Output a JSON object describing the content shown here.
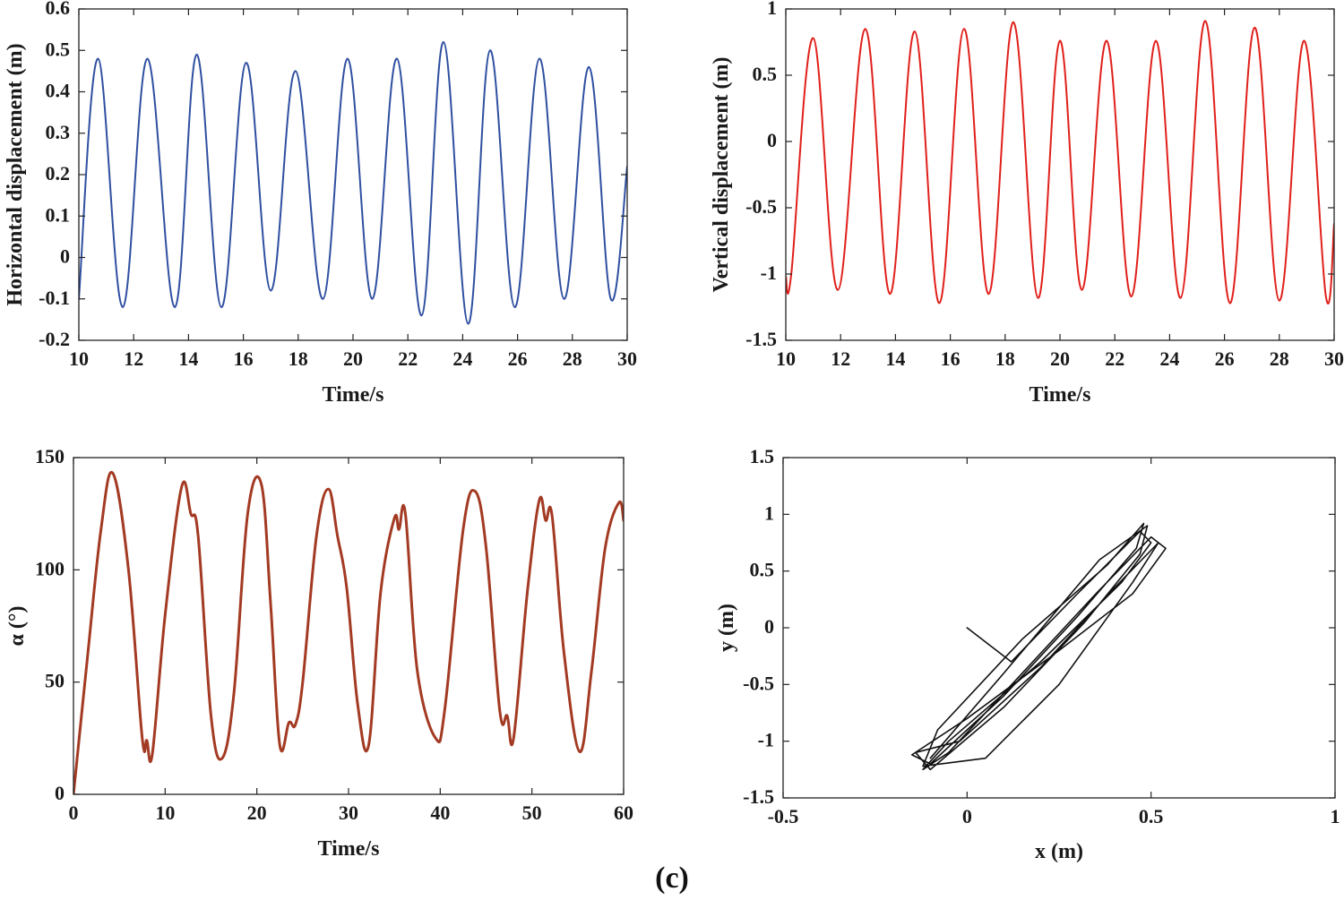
{
  "caption": "(c)",
  "chart_data": [
    {
      "type": "line",
      "color": "#2f4fa0",
      "xlabel": "Time/s",
      "ylabel": "Horizontal displacement (m)",
      "xlim": [
        10,
        30
      ],
      "ylim": [
        -0.2,
        0.6
      ],
      "xticks": [
        10,
        12,
        14,
        16,
        18,
        20,
        22,
        24,
        26,
        28,
        30
      ],
      "yticks": [
        -0.2,
        -0.1,
        0,
        0.1,
        0.2,
        0.3,
        0.4,
        0.5,
        0.6
      ],
      "xtick_labels": [
        "10",
        "12",
        "14",
        "16",
        "18",
        "20",
        "22",
        "24",
        "26",
        "28",
        "30"
      ],
      "ytick_labels": [
        "-0.2",
        "-0.1",
        "0",
        "0.1",
        "0.2",
        "0.3",
        "0.4",
        "0.5",
        "0.6"
      ],
      "series": [
        {
          "name": "horizontal displacement",
          "x": [
            10.0,
            10.7,
            11.6,
            12.5,
            13.5,
            14.3,
            15.2,
            16.1,
            17.0,
            17.9,
            18.9,
            19.8,
            20.7,
            21.6,
            22.5,
            23.3,
            24.2,
            25.0,
            25.9,
            26.8,
            27.7,
            28.6,
            29.4,
            30.0
          ],
          "y": [
            -0.1,
            0.48,
            -0.12,
            0.48,
            -0.12,
            0.49,
            -0.12,
            0.47,
            -0.08,
            0.45,
            -0.1,
            0.48,
            -0.1,
            0.48,
            -0.14,
            0.52,
            -0.16,
            0.5,
            -0.12,
            0.48,
            -0.1,
            0.46,
            -0.1,
            0.22
          ]
        }
      ]
    },
    {
      "type": "line",
      "color": "#e0201b",
      "xlabel": "Time/s",
      "ylabel": "Vertical displacement (m)",
      "xlim": [
        10,
        30
      ],
      "ylim": [
        -1.5,
        1
      ],
      "xticks": [
        10,
        12,
        14,
        16,
        18,
        20,
        22,
        24,
        26,
        28,
        30
      ],
      "yticks": [
        -1.5,
        -1,
        -0.5,
        0,
        0.5,
        1
      ],
      "xtick_labels": [
        "10",
        "12",
        "14",
        "16",
        "18",
        "20",
        "22",
        "24",
        "26",
        "28",
        "30"
      ],
      "ytick_labels": [
        "-1.5",
        "-1",
        "-0.5",
        "0",
        "0.5",
        "1"
      ],
      "series": [
        {
          "name": "vertical displacement",
          "x": [
            10.0,
            10.2,
            11.0,
            11.9,
            12.9,
            13.8,
            14.7,
            15.6,
            16.5,
            17.4,
            18.3,
            19.2,
            20.0,
            20.8,
            21.7,
            22.6,
            23.5,
            24.4,
            25.3,
            26.2,
            27.1,
            28.0,
            28.9,
            29.7,
            30.0
          ],
          "y": [
            -1.02,
            -1.0,
            0.78,
            -1.12,
            0.85,
            -1.15,
            0.83,
            -1.22,
            0.85,
            -1.15,
            0.9,
            -1.18,
            0.76,
            -1.12,
            0.76,
            -1.17,
            0.76,
            -1.18,
            0.91,
            -1.22,
            0.86,
            -1.2,
            0.76,
            -1.17,
            -0.62
          ]
        }
      ]
    },
    {
      "type": "line",
      "color": "#a33a23",
      "xlabel": "Time/s",
      "ylabel": "α (°)",
      "xlim": [
        0,
        60
      ],
      "ylim": [
        0,
        150
      ],
      "xticks": [
        0,
        10,
        20,
        30,
        40,
        50,
        60
      ],
      "yticks": [
        0,
        50,
        100,
        150
      ],
      "xtick_labels": [
        "0",
        "10",
        "20",
        "30",
        "40",
        "50",
        "60"
      ],
      "ytick_labels": [
        "0",
        "50",
        "100",
        "150"
      ],
      "series": [
        {
          "name": "alpha",
          "x": [
            0,
            1.5,
            3.0,
            4.3,
            6.0,
            7.5,
            8.0,
            8.6,
            10.0,
            11.8,
            12.8,
            13.6,
            15.0,
            16.2,
            17.5,
            19.0,
            20.5,
            21.5,
            22.5,
            23.5,
            24.2,
            25.0,
            26.5,
            27.8,
            28.8,
            29.8,
            31.0,
            32.2,
            33.5,
            35.0,
            35.5,
            36.2,
            37.5,
            39.5,
            40.5,
            42.5,
            43.8,
            45.0,
            46.5,
            47.3,
            48.0,
            49.5,
            50.8,
            51.5,
            52.2,
            53.5,
            55.2,
            56.5,
            58.0,
            59.5,
            60.0
          ],
          "y": [
            0,
            60,
            118,
            143,
            100,
            25,
            24,
            18,
            80,
            137,
            125,
            115,
            35,
            16,
            45,
            125,
            138,
            85,
            22,
            32,
            31,
            50,
            115,
            136,
            115,
            92,
            40,
            22,
            90,
            123,
            118,
            125,
            55,
            25,
            38,
            118,
            135,
            110,
            37,
            35,
            25,
            90,
            131,
            122,
            124,
            63,
            19,
            55,
            110,
            130,
            122
          ]
        }
      ]
    },
    {
      "type": "line",
      "color": "#111111",
      "xlabel": "x (m)",
      "ylabel": "y (m)",
      "xlim": [
        -0.5,
        1
      ],
      "ylim": [
        -1.5,
        1.5
      ],
      "xticks": [
        -0.5,
        0,
        0.5,
        1
      ],
      "yticks": [
        -1.5,
        -1,
        -0.5,
        0,
        0.5,
        1,
        1.5
      ],
      "xtick_labels": [
        "-0.5",
        "0",
        "0.5",
        "1"
      ],
      "ytick_labels": [
        "-1.5",
        "-1",
        "-0.5",
        "0",
        "0.5",
        "1",
        "1.5"
      ],
      "series": [
        {
          "name": "trajectory",
          "x": [
            0.0,
            0.12,
            0.3,
            0.47,
            0.5,
            0.42,
            0.2,
            -0.05,
            -0.12,
            -0.05,
            0.15,
            0.35,
            0.5,
            0.54,
            0.45,
            0.25,
            0.0,
            -0.15,
            -0.1,
            0.1,
            0.3,
            0.46,
            0.48,
            0.38,
            0.15,
            -0.08,
            -0.12,
            0.05,
            0.25,
            0.45,
            0.52,
            0.4,
            0.2,
            -0.02,
            -0.14,
            -0.1,
            0.1,
            0.32,
            0.47,
            0.49,
            0.36,
            0.1,
            -0.1
          ],
          "y": [
            0.0,
            -0.3,
            0.3,
            0.85,
            0.75,
            0.4,
            -0.3,
            -1.0,
            -1.25,
            -1.1,
            -0.4,
            0.3,
            0.8,
            0.7,
            0.3,
            -0.2,
            -0.8,
            -1.12,
            -1.2,
            -0.6,
            0.1,
            0.7,
            0.92,
            0.55,
            -0.1,
            -0.9,
            -1.22,
            -1.15,
            -0.5,
            0.4,
            0.75,
            0.35,
            -0.35,
            -1.0,
            -1.1,
            -1.25,
            -0.7,
            0.05,
            0.65,
            0.9,
            0.6,
            -0.4,
            -1.15
          ]
        }
      ]
    }
  ]
}
